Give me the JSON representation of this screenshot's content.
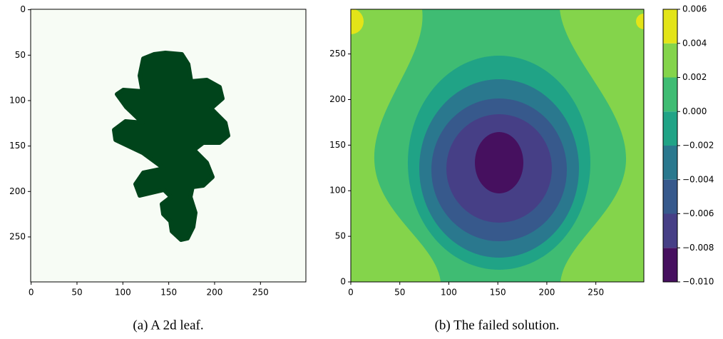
{
  "chart_data": [
    {
      "type": "image",
      "caption": "(a) A 2d leaf.",
      "background": "#f7fcf5",
      "color": "#00441b",
      "xlim": [
        -0.5,
        299.5
      ],
      "ylim": [
        299.5,
        -0.5
      ],
      "xticks": [
        0,
        50,
        100,
        150,
        200,
        250
      ],
      "yticks": [
        0,
        50,
        100,
        150,
        200,
        250
      ]
    },
    {
      "type": "contour",
      "caption": "(b) The failed solution.",
      "xlim": [
        0,
        299
      ],
      "ylim": [
        0,
        299
      ],
      "xticks": [
        0,
        50,
        100,
        150,
        200,
        250
      ],
      "yticks": [
        0,
        50,
        100,
        150,
        200,
        250
      ],
      "levels": [
        {
          "value": -0.01,
          "label": "−0.010"
        },
        {
          "value": -0.008,
          "label": "−0.008"
        },
        {
          "value": -0.006,
          "label": "−0.006"
        },
        {
          "value": -0.004,
          "label": "−0.004"
        },
        {
          "value": -0.002,
          "label": "−0.002"
        },
        {
          "value": 0.0,
          "label": "0.000"
        },
        {
          "value": 0.002,
          "label": "0.002"
        },
        {
          "value": 0.004,
          "label": "0.004"
        },
        {
          "value": 0.006,
          "label": "0.006"
        }
      ],
      "colors": [
        "#46105f",
        "#463f86",
        "#37598c",
        "#2a788e",
        "#20a386",
        "#3fbc73",
        "#84d44b",
        "#e3e418"
      ]
    }
  ]
}
